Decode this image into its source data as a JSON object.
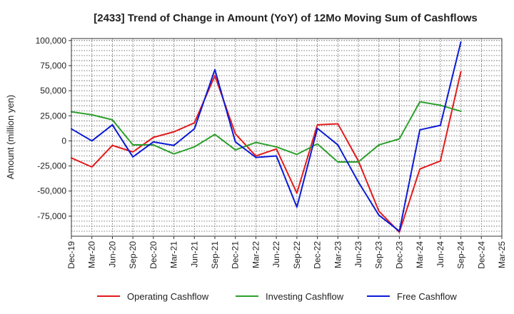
{
  "chart_data": {
    "type": "line",
    "title": "[2433]  Trend of Change in Amount (YoY) of 12Mo Moving Sum of Cashflows",
    "xlabel": "",
    "ylabel": "Amount (million yen)",
    "ylim": [
      -95000,
      102000
    ],
    "yticks": [
      100000,
      75000,
      50000,
      25000,
      0,
      -25000,
      -50000,
      -75000
    ],
    "ytick_labels": [
      "100,000",
      "75,000",
      "50,000",
      "25,000",
      "0",
      "-25,000",
      "-50,000",
      "-75,000"
    ],
    "categories": [
      "Dec-19",
      "Mar-20",
      "Jun-20",
      "Sep-20",
      "Dec-20",
      "Mar-21",
      "Jun-21",
      "Sep-21",
      "Dec-21",
      "Mar-22",
      "Jun-22",
      "Sep-22",
      "Dec-22",
      "Mar-23",
      "Jun-23",
      "Sep-23",
      "Dec-23",
      "Mar-24",
      "Jun-24",
      "Sep-24",
      "Dec-24",
      "Mar-25"
    ],
    "grid": true,
    "legend_position": "bottom",
    "series": [
      {
        "name": "Operating Cashflow",
        "color": "#e31a1c",
        "values": [
          -17000,
          -26000,
          -4500,
          -11000,
          3500,
          9000,
          18000,
          65000,
          7000,
          -15000,
          -8000,
          -52000,
          16000,
          17000,
          -20000,
          -70000,
          -91000,
          -28000,
          -20000,
          69000,
          null,
          null
        ]
      },
      {
        "name": "Investing Cashflow",
        "color": "#2ca02c",
        "values": [
          29000,
          26000,
          21000,
          -4000,
          -4000,
          -13000,
          -6000,
          6500,
          -9000,
          -1500,
          -6000,
          -13500,
          -3000,
          -21000,
          -21000,
          -4000,
          2000,
          39000,
          35500,
          29500,
          null,
          null
        ]
      },
      {
        "name": "Free Cashflow",
        "color": "#0a1ad6",
        "values": [
          12000,
          0,
          16000,
          -16000,
          -1000,
          -4500,
          12000,
          71000,
          -1000,
          -16500,
          -15000,
          -66000,
          12500,
          -4000,
          -41000,
          -74000,
          -90000,
          11000,
          15500,
          98500,
          null,
          null
        ]
      }
    ]
  }
}
